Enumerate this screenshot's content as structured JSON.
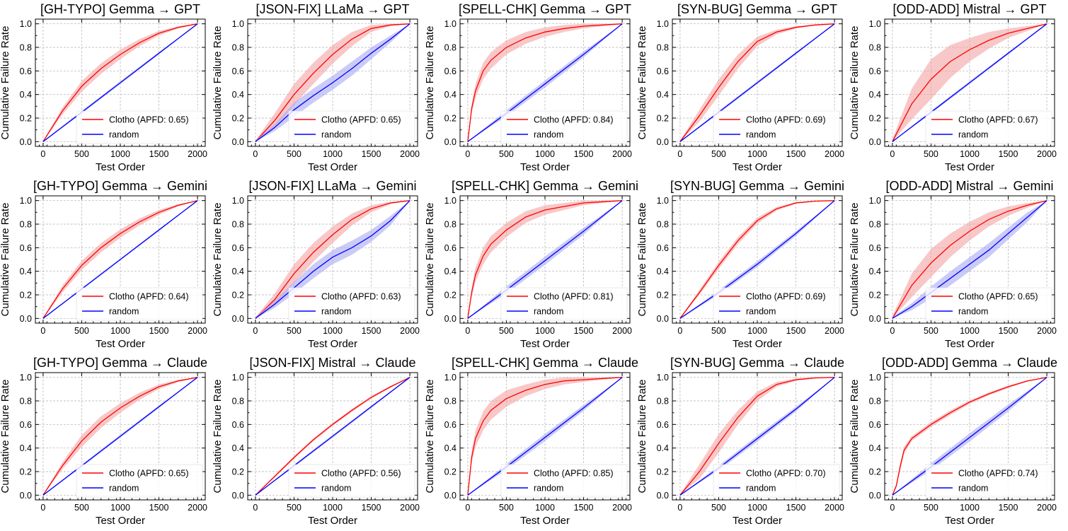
{
  "figure": {
    "xlabel": "Test Order",
    "ylabel": "Cumulative Failure Rate",
    "xticks": [
      0,
      500,
      1000,
      1500,
      2000
    ],
    "yticks": [
      0.0,
      0.2,
      0.4,
      0.6,
      0.8,
      1.0
    ],
    "xlim": [
      -100,
      2100
    ],
    "ylim": [
      -0.04,
      1.04
    ],
    "legend_position": "lower-right",
    "colors": {
      "clotho": "#ff0000",
      "random": "#0000ff",
      "clotho_band": "#f4a3a3",
      "random_band": "#a9a9f2"
    }
  },
  "chart_data": [
    {
      "type": "line",
      "title": "[GH-TYPO] Gemma → GPT",
      "xlabel": "Test Order",
      "ylabel": "Cumulative Failure Rate",
      "series": [
        {
          "name": "Clotho (APFD: 0.65)",
          "x": [
            0,
            250,
            500,
            750,
            1000,
            1250,
            1500,
            1750,
            2000
          ],
          "y": [
            0,
            0.26,
            0.47,
            0.62,
            0.74,
            0.84,
            0.92,
            0.97,
            1.0
          ],
          "band": [
            0.01,
            0.03,
            0.045,
            0.045,
            0.04,
            0.03,
            0.02,
            0.01,
            0
          ]
        },
        {
          "name": "random",
          "x": [
            0,
            500,
            1000,
            1500,
            2000
          ],
          "y": [
            0,
            0.25,
            0.5,
            0.75,
            1.0
          ],
          "band": [
            0,
            0.012,
            0.012,
            0.01,
            0
          ]
        }
      ]
    },
    {
      "type": "line",
      "title": "[JSON-FIX] LLaMa → GPT",
      "xlabel": "Test Order",
      "ylabel": "Cumulative Failure Rate",
      "series": [
        {
          "name": "Clotho (APFD: 0.65)",
          "x": [
            0,
            250,
            500,
            750,
            1000,
            1250,
            1500,
            1750,
            2000
          ],
          "y": [
            0,
            0.18,
            0.4,
            0.58,
            0.74,
            0.87,
            0.96,
            0.99,
            1.0
          ],
          "band": [
            0.01,
            0.06,
            0.09,
            0.09,
            0.08,
            0.06,
            0.03,
            0.01,
            0
          ]
        },
        {
          "name": "random",
          "x": [
            0,
            250,
            500,
            750,
            1000,
            1250,
            1500,
            1750,
            2000
          ],
          "y": [
            0,
            0.12,
            0.27,
            0.39,
            0.5,
            0.62,
            0.75,
            0.87,
            1.0
          ],
          "band": [
            0.01,
            0.03,
            0.06,
            0.06,
            0.06,
            0.06,
            0.05,
            0.03,
            0
          ]
        }
      ]
    },
    {
      "type": "line",
      "title": "[SPELL-CHK] Gemma → GPT",
      "xlabel": "Test Order",
      "ylabel": "Cumulative Failure Rate",
      "series": [
        {
          "name": "Clotho (APFD: 0.84)",
          "x": [
            0,
            50,
            100,
            200,
            300,
            500,
            750,
            1000,
            1250,
            1500,
            1750,
            2000
          ],
          "y": [
            0,
            0.28,
            0.43,
            0.6,
            0.69,
            0.8,
            0.88,
            0.93,
            0.96,
            0.98,
            0.99,
            1.0
          ],
          "band": [
            0,
            0.04,
            0.06,
            0.07,
            0.07,
            0.06,
            0.05,
            0.04,
            0.03,
            0.02,
            0.01,
            0
          ]
        },
        {
          "name": "random",
          "x": [
            0,
            500,
            1000,
            1500,
            2000
          ],
          "y": [
            0,
            0.24,
            0.49,
            0.74,
            1.0
          ],
          "band": [
            0,
            0.025,
            0.03,
            0.025,
            0
          ]
        }
      ]
    },
    {
      "type": "line",
      "title": "[SYN-BUG] Gemma → GPT",
      "xlabel": "Test Order",
      "ylabel": "Cumulative Failure Rate",
      "series": [
        {
          "name": "Clotho (APFD: 0.69)",
          "x": [
            0,
            250,
            500,
            750,
            1000,
            1250,
            1500,
            1750,
            2000
          ],
          "y": [
            0,
            0.22,
            0.46,
            0.68,
            0.85,
            0.93,
            0.97,
            0.99,
            1.0
          ],
          "band": [
            0.01,
            0.05,
            0.07,
            0.06,
            0.04,
            0.02,
            0.01,
            0.005,
            0
          ]
        },
        {
          "name": "random",
          "x": [
            0,
            500,
            1000,
            1500,
            2000
          ],
          "y": [
            0,
            0.25,
            0.5,
            0.75,
            1.0
          ],
          "band": [
            0,
            0.012,
            0.012,
            0.01,
            0
          ]
        }
      ]
    },
    {
      "type": "line",
      "title": "[ODD-ADD] Mistral → GPT",
      "xlabel": "Test Order",
      "ylabel": "Cumulative Failure Rate",
      "series": [
        {
          "name": "Clotho (APFD: 0.67)",
          "x": [
            0,
            250,
            500,
            750,
            1000,
            1250,
            1500,
            1750,
            2000
          ],
          "y": [
            0,
            0.32,
            0.53,
            0.68,
            0.78,
            0.86,
            0.92,
            0.96,
            1.0
          ],
          "band": [
            0.02,
            0.13,
            0.17,
            0.14,
            0.1,
            0.07,
            0.04,
            0.02,
            0
          ]
        },
        {
          "name": "random",
          "x": [
            0,
            500,
            1000,
            1500,
            2000
          ],
          "y": [
            0,
            0.25,
            0.5,
            0.75,
            1.0
          ],
          "band": [
            0,
            0.012,
            0.012,
            0.01,
            0
          ]
        }
      ]
    },
    {
      "type": "line",
      "title": "[GH-TYPO] Gemma → Gemini",
      "xlabel": "Test Order",
      "ylabel": "Cumulative Failure Rate",
      "series": [
        {
          "name": "Clotho (APFD: 0.64)",
          "x": [
            0,
            250,
            500,
            750,
            1000,
            1250,
            1500,
            1750,
            2000
          ],
          "y": [
            0,
            0.25,
            0.45,
            0.6,
            0.72,
            0.82,
            0.9,
            0.96,
            1.0
          ],
          "band": [
            0.01,
            0.03,
            0.04,
            0.04,
            0.035,
            0.03,
            0.02,
            0.01,
            0
          ]
        },
        {
          "name": "random",
          "x": [
            0,
            500,
            1000,
            1500,
            2000
          ],
          "y": [
            0,
            0.25,
            0.5,
            0.75,
            1.0
          ],
          "band": [
            0,
            0.008,
            0.008,
            0.008,
            0
          ]
        }
      ]
    },
    {
      "type": "line",
      "title": "[JSON-FIX] LLaMa → Gemini",
      "xlabel": "Test Order",
      "ylabel": "Cumulative Failure Rate",
      "series": [
        {
          "name": "Clotho (APFD: 0.63)",
          "x": [
            0,
            250,
            500,
            750,
            1000,
            1250,
            1500,
            1750,
            2000
          ],
          "y": [
            0,
            0.16,
            0.38,
            0.56,
            0.71,
            0.84,
            0.93,
            0.98,
            1.0
          ],
          "band": [
            0.01,
            0.05,
            0.08,
            0.08,
            0.07,
            0.05,
            0.03,
            0.01,
            0
          ]
        },
        {
          "name": "random",
          "x": [
            0,
            250,
            500,
            750,
            1000,
            1250,
            1500,
            1750,
            2000
          ],
          "y": [
            0,
            0.12,
            0.26,
            0.4,
            0.52,
            0.6,
            0.7,
            0.83,
            1.0
          ],
          "band": [
            0.01,
            0.03,
            0.05,
            0.06,
            0.06,
            0.06,
            0.05,
            0.04,
            0
          ]
        }
      ]
    },
    {
      "type": "line",
      "title": "[SPELL-CHK] Gemma → Gemini",
      "xlabel": "Test Order",
      "ylabel": "Cumulative Failure Rate",
      "series": [
        {
          "name": "Clotho (APFD: 0.81)",
          "x": [
            0,
            50,
            100,
            200,
            300,
            500,
            750,
            1000,
            1250,
            1500,
            1750,
            2000
          ],
          "y": [
            0,
            0.22,
            0.37,
            0.53,
            0.63,
            0.75,
            0.86,
            0.92,
            0.95,
            0.98,
            0.99,
            1.0
          ],
          "band": [
            0,
            0.04,
            0.06,
            0.07,
            0.07,
            0.06,
            0.05,
            0.04,
            0.03,
            0.02,
            0.01,
            0
          ]
        },
        {
          "name": "random",
          "x": [
            0,
            500,
            1000,
            1500,
            2000
          ],
          "y": [
            0,
            0.24,
            0.49,
            0.74,
            1.0
          ],
          "band": [
            0,
            0.03,
            0.035,
            0.03,
            0
          ]
        }
      ]
    },
    {
      "type": "line",
      "title": "[SYN-BUG] Gemma → Gemini",
      "xlabel": "Test Order",
      "ylabel": "Cumulative Failure Rate",
      "series": [
        {
          "name": "Clotho (APFD: 0.69)",
          "x": [
            0,
            250,
            500,
            750,
            1000,
            1250,
            1500,
            1750,
            2000
          ],
          "y": [
            0,
            0.22,
            0.45,
            0.66,
            0.83,
            0.93,
            0.98,
            0.995,
            1.0
          ],
          "band": [
            0.005,
            0.02,
            0.03,
            0.03,
            0.025,
            0.015,
            0.008,
            0.003,
            0
          ]
        },
        {
          "name": "random",
          "x": [
            0,
            500,
            1000,
            1500,
            2000
          ],
          "y": [
            0,
            0.22,
            0.46,
            0.72,
            1.0
          ],
          "band": [
            0,
            0.02,
            0.025,
            0.02,
            0
          ]
        }
      ]
    },
    {
      "type": "line",
      "title": "[ODD-ADD] Mistral → Gemini",
      "xlabel": "Test Order",
      "ylabel": "Cumulative Failure Rate",
      "series": [
        {
          "name": "Clotho (APFD: 0.65)",
          "x": [
            0,
            250,
            500,
            750,
            1000,
            1250,
            1500,
            1750,
            2000
          ],
          "y": [
            0,
            0.28,
            0.47,
            0.62,
            0.74,
            0.84,
            0.91,
            0.96,
            1.0
          ],
          "band": [
            0.02,
            0.1,
            0.12,
            0.1,
            0.08,
            0.06,
            0.04,
            0.02,
            0
          ]
        },
        {
          "name": "random",
          "x": [
            0,
            250,
            500,
            750,
            1000,
            1250,
            1500,
            1750,
            2000
          ],
          "y": [
            0,
            0.1,
            0.22,
            0.34,
            0.46,
            0.58,
            0.72,
            0.86,
            1.0
          ],
          "band": [
            0.01,
            0.03,
            0.05,
            0.06,
            0.06,
            0.06,
            0.05,
            0.04,
            0
          ]
        }
      ]
    },
    {
      "type": "line",
      "title": "[GH-TYPO] Gemma → Claude",
      "xlabel": "Test Order",
      "ylabel": "Cumulative Failure Rate",
      "series": [
        {
          "name": "Clotho (APFD: 0.65)",
          "x": [
            0,
            250,
            500,
            750,
            1000,
            1250,
            1500,
            1750,
            2000
          ],
          "y": [
            0,
            0.25,
            0.46,
            0.62,
            0.74,
            0.84,
            0.92,
            0.97,
            1.0
          ],
          "band": [
            0.01,
            0.03,
            0.05,
            0.05,
            0.04,
            0.03,
            0.02,
            0.01,
            0
          ]
        },
        {
          "name": "random",
          "x": [
            0,
            500,
            1000,
            1500,
            2000
          ],
          "y": [
            0,
            0.25,
            0.5,
            0.75,
            1.0
          ],
          "band": [
            0,
            0.01,
            0.012,
            0.01,
            0
          ]
        }
      ]
    },
    {
      "type": "line",
      "title": "[JSON-FIX] Mistral → Claude",
      "xlabel": "Test Order",
      "ylabel": "Cumulative Failure Rate",
      "series": [
        {
          "name": "Clotho (APFD: 0.56)",
          "x": [
            0,
            250,
            500,
            750,
            1000,
            1250,
            1500,
            1750,
            2000
          ],
          "y": [
            0,
            0.16,
            0.32,
            0.47,
            0.6,
            0.72,
            0.83,
            0.92,
            1.0
          ],
          "band": [
            0.005,
            0.01,
            0.012,
            0.012,
            0.012,
            0.012,
            0.01,
            0.008,
            0
          ]
        },
        {
          "name": "random",
          "x": [
            0,
            500,
            1000,
            1500,
            2000
          ],
          "y": [
            0,
            0.25,
            0.5,
            0.75,
            1.0
          ],
          "band": [
            0,
            0.01,
            0.012,
            0.01,
            0
          ]
        }
      ]
    },
    {
      "type": "line",
      "title": "[SPELL-CHK] Gemma → Claude",
      "xlabel": "Test Order",
      "ylabel": "Cumulative Failure Rate",
      "series": [
        {
          "name": "Clotho (APFD: 0.85)",
          "x": [
            0,
            50,
            100,
            200,
            300,
            500,
            750,
            1000,
            1250,
            1500,
            1750,
            2000
          ],
          "y": [
            0,
            0.32,
            0.48,
            0.63,
            0.72,
            0.82,
            0.89,
            0.94,
            0.97,
            0.98,
            0.99,
            1.0
          ],
          "band": [
            0,
            0.05,
            0.07,
            0.08,
            0.08,
            0.07,
            0.05,
            0.04,
            0.03,
            0.02,
            0.01,
            0
          ]
        },
        {
          "name": "random",
          "x": [
            0,
            500,
            1000,
            1500,
            2000
          ],
          "y": [
            0,
            0.24,
            0.49,
            0.74,
            1.0
          ],
          "band": [
            0,
            0.025,
            0.03,
            0.025,
            0
          ]
        }
      ]
    },
    {
      "type": "line",
      "title": "[SYN-BUG] Gemma → Claude",
      "xlabel": "Test Order",
      "ylabel": "Cumulative Failure Rate",
      "series": [
        {
          "name": "Clotho (APFD: 0.70)",
          "x": [
            0,
            250,
            500,
            750,
            1000,
            1250,
            1500,
            1750,
            2000
          ],
          "y": [
            0,
            0.2,
            0.44,
            0.66,
            0.84,
            0.94,
            0.98,
            0.995,
            1.0
          ],
          "band": [
            0.01,
            0.06,
            0.08,
            0.06,
            0.04,
            0.02,
            0.01,
            0.005,
            0
          ]
        },
        {
          "name": "random",
          "x": [
            0,
            500,
            1000,
            1500,
            2000
          ],
          "y": [
            0,
            0.23,
            0.48,
            0.73,
            1.0
          ],
          "band": [
            0,
            0.02,
            0.025,
            0.02,
            0
          ]
        }
      ]
    },
    {
      "type": "line",
      "title": "[ODD-ADD] Gemma → Claude",
      "xlabel": "Test Order",
      "ylabel": "Cumulative Failure Rate",
      "series": [
        {
          "name": "Clotho (APFD: 0.74)",
          "x": [
            0,
            50,
            100,
            150,
            250,
            500,
            750,
            1000,
            1250,
            1500,
            1750,
            2000
          ],
          "y": [
            0,
            0.08,
            0.24,
            0.38,
            0.48,
            0.6,
            0.7,
            0.79,
            0.86,
            0.92,
            0.97,
            1.0
          ],
          "band": [
            0,
            0.02,
            0.03,
            0.03,
            0.02,
            0.02,
            0.02,
            0.015,
            0.012,
            0.01,
            0.005,
            0
          ]
        },
        {
          "name": "random",
          "x": [
            0,
            500,
            1000,
            1500,
            2000
          ],
          "y": [
            0,
            0.24,
            0.49,
            0.74,
            1.0
          ],
          "band": [
            0,
            0.03,
            0.035,
            0.03,
            0
          ]
        }
      ]
    }
  ]
}
